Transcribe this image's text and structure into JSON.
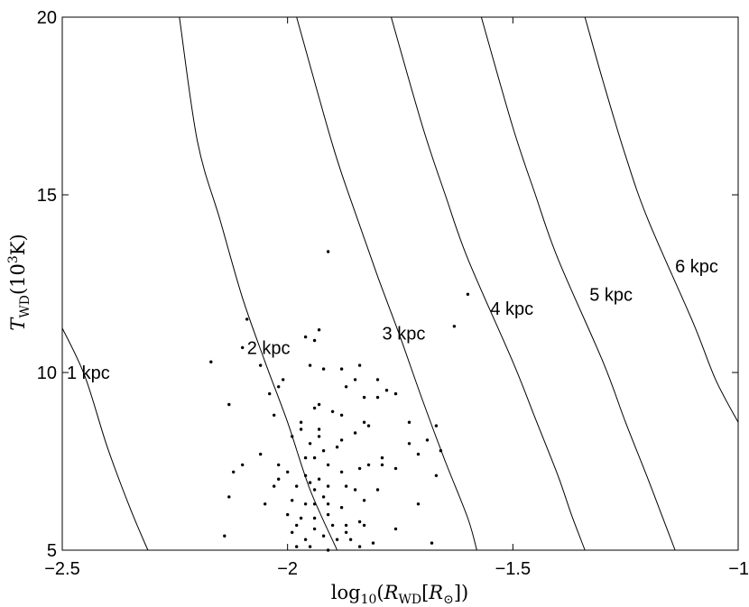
{
  "chart_data": {
    "type": "scatter",
    "xlabel": {
      "prefix": "log",
      "prefix_sub": "10",
      "open": "(",
      "var": "R",
      "var_sub": "WD",
      "bracket_open": "[",
      "inner_var": "R",
      "inner_sub": "⊙",
      "close": "])"
    },
    "ylabel": {
      "var": "T",
      "var_sub": "WD",
      "open": "(10",
      "exp": "3",
      "close": "K)"
    },
    "xlim": [
      -2.5,
      -1
    ],
    "ylim": [
      5,
      20
    ],
    "xticks": [
      -2.5,
      -2,
      -1.5,
      -1
    ],
    "xtick_labels": [
      "−2.5",
      "−2",
      "−1.5",
      "−1"
    ],
    "yticks": [
      5,
      10,
      15,
      20
    ],
    "ytick_labels": [
      "5",
      "10",
      "15",
      "20"
    ],
    "grid": false,
    "distance_curves": [
      {
        "label": "1 kpc",
        "points": [
          [
            -2.5,
            11.25
          ],
          [
            -2.45,
            9.9
          ],
          [
            -2.4,
            7.9
          ],
          [
            -2.35,
            6.2
          ],
          [
            -2.31,
            5.0
          ]
        ],
        "label_at": [
          -2.49,
          10.0
        ]
      },
      {
        "label": "2 kpc",
        "points": [
          [
            -2.24,
            20.0
          ],
          [
            -2.2,
            16.5
          ],
          [
            -2.15,
            14.3
          ],
          [
            -2.1,
            12.1
          ],
          [
            -2.05,
            10.3
          ],
          [
            -2.0,
            8.6
          ],
          [
            -1.95,
            6.7
          ],
          [
            -1.89,
            5.0
          ]
        ],
        "label_at": [
          -2.09,
          10.7
        ]
      },
      {
        "label": "3 kpc",
        "points": [
          [
            -1.98,
            20.0
          ],
          [
            -1.9,
            16.4
          ],
          [
            -1.85,
            14.5
          ],
          [
            -1.8,
            12.7
          ],
          [
            -1.75,
            11.0
          ],
          [
            -1.7,
            9.2
          ],
          [
            -1.65,
            7.5
          ],
          [
            -1.6,
            5.9
          ],
          [
            -1.58,
            5.0
          ]
        ],
        "label_at": [
          -1.79,
          11.1
        ]
      },
      {
        "label": "4 kpc",
        "points": [
          [
            -1.77,
            20.0
          ],
          [
            -1.7,
            16.9
          ],
          [
            -1.65,
            15.0
          ],
          [
            -1.6,
            13.2
          ],
          [
            -1.5,
            10.3
          ],
          [
            -1.45,
            8.7
          ],
          [
            -1.4,
            7.1
          ],
          [
            -1.37,
            6.0
          ],
          [
            -1.34,
            5.0
          ]
        ],
        "label_at": [
          -1.55,
          11.8
        ]
      },
      {
        "label": "5 kpc",
        "points": [
          [
            -1.57,
            20.0
          ],
          [
            -1.5,
            16.9
          ],
          [
            -1.45,
            15.0
          ],
          [
            -1.4,
            13.2
          ],
          [
            -1.3,
            10.3
          ],
          [
            -1.25,
            8.6
          ],
          [
            -1.2,
            7.0
          ],
          [
            -1.17,
            6.0
          ],
          [
            -1.14,
            5.0
          ]
        ],
        "label_at": [
          -1.33,
          12.2
        ]
      },
      {
        "label": "6 kpc",
        "points": [
          [
            -1.34,
            20.0
          ],
          [
            -1.3,
            18.2
          ],
          [
            -1.25,
            16.1
          ],
          [
            -1.2,
            14.3
          ],
          [
            -1.1,
            11.4
          ],
          [
            -1.05,
            9.8
          ],
          [
            -1.0,
            8.6
          ]
        ],
        "label_at": [
          -1.14,
          13.0
        ]
      }
    ],
    "points": [
      [
        -1.91,
        13.4
      ],
      [
        -1.6,
        12.2
      ],
      [
        -1.63,
        11.3
      ],
      [
        -2.09,
        11.5
      ],
      [
        -1.93,
        11.2
      ],
      [
        -1.96,
        11.0
      ],
      [
        -2.1,
        10.7
      ],
      [
        -1.94,
        10.9
      ],
      [
        -2.17,
        10.3
      ],
      [
        -2.06,
        10.2
      ],
      [
        -1.92,
        10.1
      ],
      [
        -1.88,
        10.1
      ],
      [
        -1.84,
        10.2
      ],
      [
        -1.95,
        10.2
      ],
      [
        -2.01,
        9.8
      ],
      [
        -2.02,
        9.6
      ],
      [
        -1.85,
        9.8
      ],
      [
        -1.8,
        9.8
      ],
      [
        -1.78,
        9.5
      ],
      [
        -2.04,
        9.4
      ],
      [
        -1.87,
        9.6
      ],
      [
        -1.83,
        9.3
      ],
      [
        -1.93,
        9.1
      ],
      [
        -1.8,
        9.3
      ],
      [
        -1.76,
        9.4
      ],
      [
        -2.13,
        9.1
      ],
      [
        -1.94,
        9.0
      ],
      [
        -1.9,
        8.9
      ],
      [
        -1.88,
        8.8
      ],
      [
        -2.03,
        8.8
      ],
      [
        -1.97,
        8.6
      ],
      [
        -1.83,
        8.6
      ],
      [
        -1.82,
        8.5
      ],
      [
        -1.97,
        8.4
      ],
      [
        -1.93,
        8.4
      ],
      [
        -1.73,
        8.6
      ],
      [
        -1.67,
        8.5
      ],
      [
        -1.99,
        8.2
      ],
      [
        -1.85,
        8.3
      ],
      [
        -1.93,
        8.2
      ],
      [
        -1.88,
        8.1
      ],
      [
        -1.73,
        8.0
      ],
      [
        -1.69,
        8.1
      ],
      [
        -1.66,
        7.8
      ],
      [
        -1.95,
        8.0
      ],
      [
        -1.89,
        7.9
      ],
      [
        -1.92,
        7.8
      ],
      [
        -1.96,
        7.6
      ],
      [
        -1.79,
        7.6
      ],
      [
        -1.79,
        7.4
      ],
      [
        -1.76,
        7.3
      ],
      [
        -1.71,
        7.7
      ],
      [
        -2.06,
        7.7
      ],
      [
        -2.1,
        7.4
      ],
      [
        -2.02,
        7.4
      ],
      [
        -1.94,
        7.6
      ],
      [
        -1.91,
        7.4
      ],
      [
        -1.88,
        7.2
      ],
      [
        -1.84,
        7.3
      ],
      [
        -1.82,
        7.4
      ],
      [
        -2.12,
        7.2
      ],
      [
        -2.0,
        7.2
      ],
      [
        -1.96,
        7.1
      ],
      [
        -1.93,
        7.0
      ],
      [
        -2.02,
        7.0
      ],
      [
        -1.95,
        6.9
      ],
      [
        -1.91,
        6.8
      ],
      [
        -1.87,
        6.8
      ],
      [
        -1.85,
        6.7
      ],
      [
        -1.8,
        6.7
      ],
      [
        -1.67,
        7.1
      ],
      [
        -2.03,
        6.8
      ],
      [
        -1.98,
        6.8
      ],
      [
        -1.94,
        6.7
      ],
      [
        -1.92,
        6.5
      ],
      [
        -1.96,
        6.3
      ],
      [
        -2.13,
        6.5
      ],
      [
        -2.05,
        6.3
      ],
      [
        -1.99,
        6.4
      ],
      [
        -1.94,
        6.3
      ],
      [
        -1.91,
        6.3
      ],
      [
        -1.88,
        6.2
      ],
      [
        -1.83,
        6.4
      ],
      [
        -1.71,
        6.3
      ],
      [
        -2.0,
        6.0
      ],
      [
        -1.97,
        5.9
      ],
      [
        -1.94,
        5.9
      ],
      [
        -1.91,
        6.0
      ],
      [
        -1.98,
        5.7
      ],
      [
        -1.94,
        5.6
      ],
      [
        -1.9,
        5.7
      ],
      [
        -1.87,
        5.7
      ],
      [
        -1.84,
        5.8
      ],
      [
        -1.87,
        5.5
      ],
      [
        -1.83,
        5.7
      ],
      [
        -1.76,
        5.6
      ],
      [
        -2.14,
        5.4
      ],
      [
        -1.99,
        5.5
      ],
      [
        -1.96,
        5.3
      ],
      [
        -1.92,
        5.4
      ],
      [
        -1.89,
        5.3
      ],
      [
        -1.84,
        5.1
      ],
      [
        -1.95,
        5.1
      ],
      [
        -1.91,
        5.0
      ],
      [
        -1.81,
        5.2
      ],
      [
        -1.68,
        5.2
      ],
      [
        -1.98,
        5.1
      ],
      [
        -1.86,
        5.3
      ]
    ]
  }
}
